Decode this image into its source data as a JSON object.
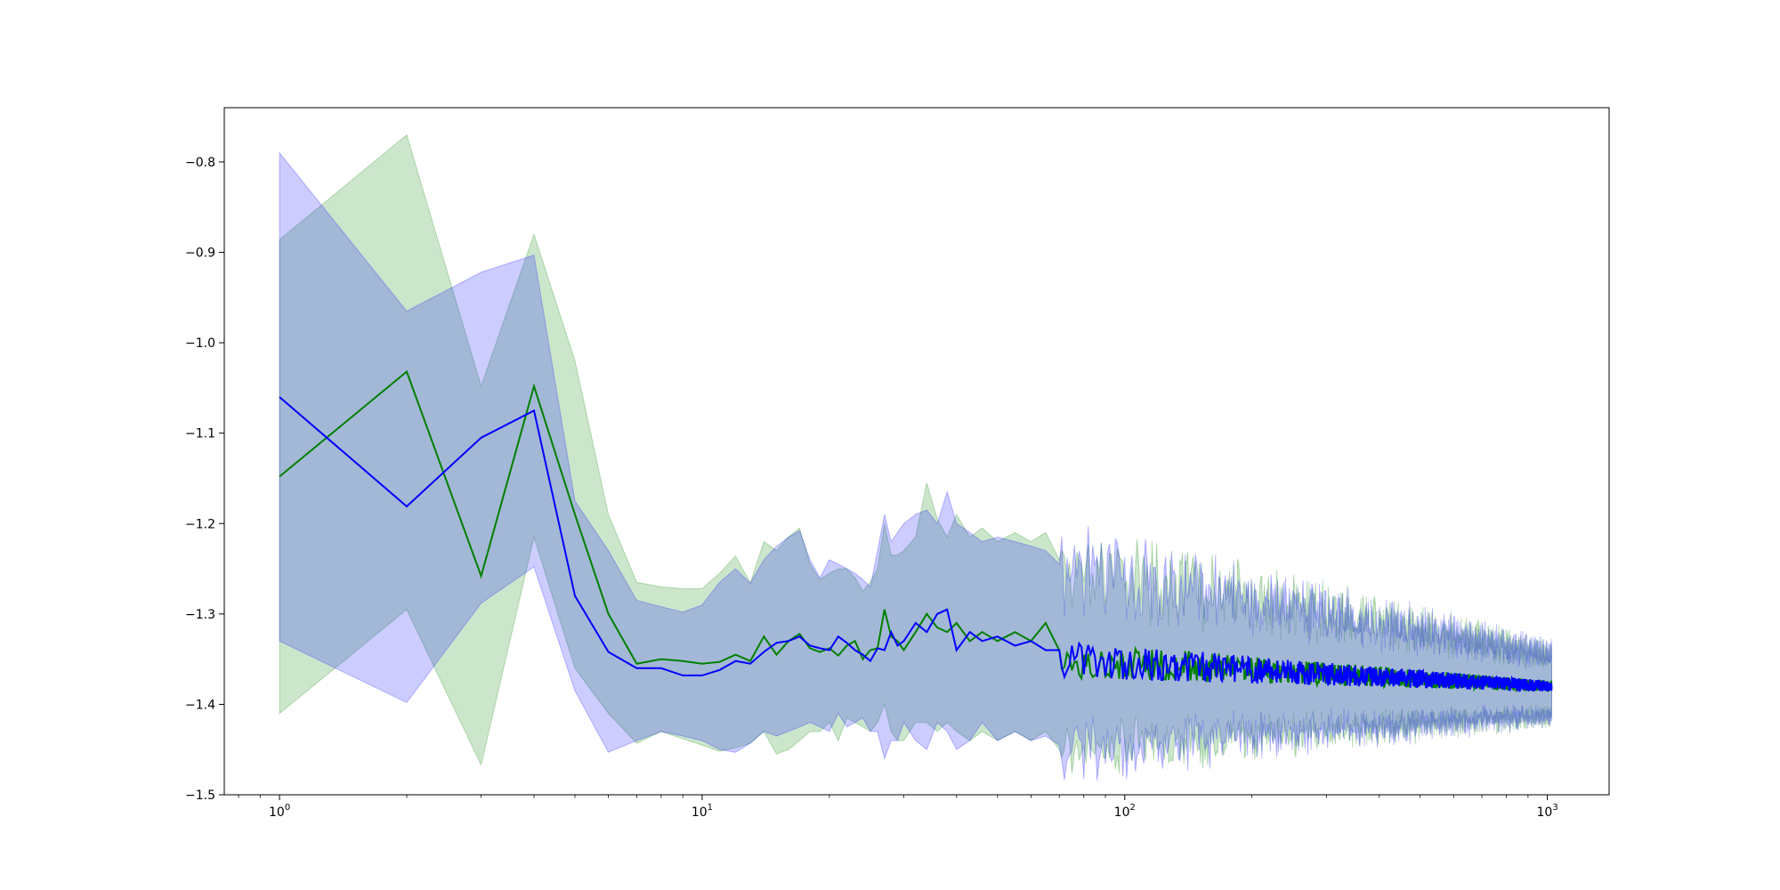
{
  "chart_data": {
    "type": "line",
    "title": "",
    "xlabel": "",
    "ylabel": "",
    "xscale": "log",
    "xlim": [
      0.74,
      1400
    ],
    "ylim": [
      -1.5,
      -0.74
    ],
    "grid": false,
    "legend": "none",
    "x_ticks": [
      {
        "base": "10",
        "exp": "0",
        "value": 1
      },
      {
        "base": "10",
        "exp": "1",
        "value": 10
      },
      {
        "base": "10",
        "exp": "2",
        "value": 100
      },
      {
        "base": "10",
        "exp": "3",
        "value": 1000
      }
    ],
    "y_ticks": [
      {
        "label": "−0.8",
        "value": -0.8
      },
      {
        "label": "−0.9",
        "value": -0.9
      },
      {
        "label": "−1.0",
        "value": -1.0
      },
      {
        "label": "−1.1",
        "value": -1.1
      },
      {
        "label": "−1.2",
        "value": -1.2
      },
      {
        "label": "−1.3",
        "value": -1.3
      },
      {
        "label": "−1.4",
        "value": -1.4
      },
      {
        "label": "−1.5",
        "value": -1.5
      }
    ],
    "tail": {
      "x_start": 70,
      "x_end": 1024,
      "step": 1,
      "band_halfwidth_start": 0.09,
      "band_halfwidth_end": 0.03,
      "center": -1.38
    },
    "series": [
      {
        "color": "#008000",
        "band_color": "#008000",
        "band_opacity": 0.2,
        "x": [
          1,
          2,
          3,
          4,
          5,
          6,
          7,
          8,
          9,
          10,
          11,
          12,
          13,
          14,
          15,
          16,
          17,
          18,
          19,
          20,
          21,
          22,
          23,
          24,
          25,
          26,
          27,
          28,
          29,
          30,
          32,
          34,
          36,
          38,
          40,
          43,
          46,
          50,
          55,
          60,
          65,
          70
        ],
        "y": [
          -1.148,
          -1.032,
          -1.258,
          -1.048,
          -1.19,
          -1.3,
          -1.355,
          -1.35,
          -1.352,
          -1.355,
          -1.353,
          -1.345,
          -1.352,
          -1.325,
          -1.345,
          -1.33,
          -1.322,
          -1.338,
          -1.342,
          -1.338,
          -1.346,
          -1.335,
          -1.33,
          -1.35,
          -1.34,
          -1.338,
          -1.295,
          -1.325,
          -1.33,
          -1.34,
          -1.32,
          -1.3,
          -1.315,
          -1.32,
          -1.31,
          -1.33,
          -1.32,
          -1.33,
          -1.32,
          -1.33,
          -1.31,
          -1.34
        ],
        "upper": [
          -0.886,
          -0.77,
          -1.048,
          -0.88,
          -1.02,
          -1.19,
          -1.265,
          -1.27,
          -1.272,
          -1.272,
          -1.255,
          -1.236,
          -1.266,
          -1.22,
          -1.23,
          -1.215,
          -1.205,
          -1.245,
          -1.262,
          -1.255,
          -1.25,
          -1.25,
          -1.26,
          -1.275,
          -1.265,
          -1.25,
          -1.2,
          -1.235,
          -1.235,
          -1.23,
          -1.215,
          -1.155,
          -1.195,
          -1.215,
          -1.19,
          -1.215,
          -1.205,
          -1.22,
          -1.21,
          -1.22,
          -1.21,
          -1.24
        ],
        "lower": [
          -1.41,
          -1.295,
          -1.467,
          -1.215,
          -1.36,
          -1.41,
          -1.443,
          -1.43,
          -1.438,
          -1.445,
          -1.452,
          -1.448,
          -1.443,
          -1.43,
          -1.455,
          -1.45,
          -1.44,
          -1.43,
          -1.43,
          -1.42,
          -1.44,
          -1.415,
          -1.42,
          -1.425,
          -1.43,
          -1.42,
          -1.4,
          -1.43,
          -1.44,
          -1.44,
          -1.42,
          -1.42,
          -1.43,
          -1.42,
          -1.43,
          -1.44,
          -1.43,
          -1.44,
          -1.43,
          -1.44,
          -1.43,
          -1.45
        ]
      },
      {
        "color": "#0000ff",
        "band_color": "#0000ff",
        "band_opacity": 0.2,
        "x": [
          1,
          2,
          3,
          4,
          5,
          6,
          7,
          8,
          9,
          10,
          11,
          12,
          13,
          14,
          15,
          16,
          17,
          18,
          19,
          20,
          21,
          22,
          23,
          24,
          25,
          26,
          27,
          28,
          29,
          30,
          32,
          34,
          36,
          38,
          40,
          43,
          46,
          50,
          55,
          60,
          65,
          70
        ],
        "y": [
          -1.06,
          -1.181,
          -1.105,
          -1.075,
          -1.28,
          -1.342,
          -1.36,
          -1.36,
          -1.368,
          -1.368,
          -1.362,
          -1.352,
          -1.355,
          -1.342,
          -1.332,
          -1.33,
          -1.325,
          -1.335,
          -1.338,
          -1.34,
          -1.325,
          -1.332,
          -1.34,
          -1.345,
          -1.352,
          -1.338,
          -1.34,
          -1.32,
          -1.335,
          -1.33,
          -1.31,
          -1.32,
          -1.3,
          -1.295,
          -1.34,
          -1.32,
          -1.33,
          -1.325,
          -1.335,
          -1.33,
          -1.34,
          -1.34
        ],
        "upper": [
          -0.79,
          -0.965,
          -0.922,
          -0.903,
          -1.175,
          -1.23,
          -1.285,
          -1.292,
          -1.298,
          -1.29,
          -1.265,
          -1.25,
          -1.266,
          -1.24,
          -1.225,
          -1.215,
          -1.208,
          -1.24,
          -1.26,
          -1.24,
          -1.245,
          -1.25,
          -1.255,
          -1.262,
          -1.27,
          -1.23,
          -1.19,
          -1.22,
          -1.21,
          -1.2,
          -1.19,
          -1.185,
          -1.2,
          -1.165,
          -1.2,
          -1.21,
          -1.22,
          -1.215,
          -1.22,
          -1.225,
          -1.23,
          -1.245
        ],
        "lower": [
          -1.33,
          -1.398,
          -1.288,
          -1.248,
          -1.385,
          -1.453,
          -1.44,
          -1.43,
          -1.435,
          -1.44,
          -1.45,
          -1.453,
          -1.443,
          -1.43,
          -1.435,
          -1.43,
          -1.425,
          -1.42,
          -1.425,
          -1.43,
          -1.41,
          -1.425,
          -1.42,
          -1.415,
          -1.43,
          -1.43,
          -1.46,
          -1.44,
          -1.44,
          -1.42,
          -1.44,
          -1.45,
          -1.42,
          -1.43,
          -1.45,
          -1.44,
          -1.42,
          -1.44,
          -1.43,
          -1.44,
          -1.435,
          -1.445
        ]
      }
    ]
  }
}
